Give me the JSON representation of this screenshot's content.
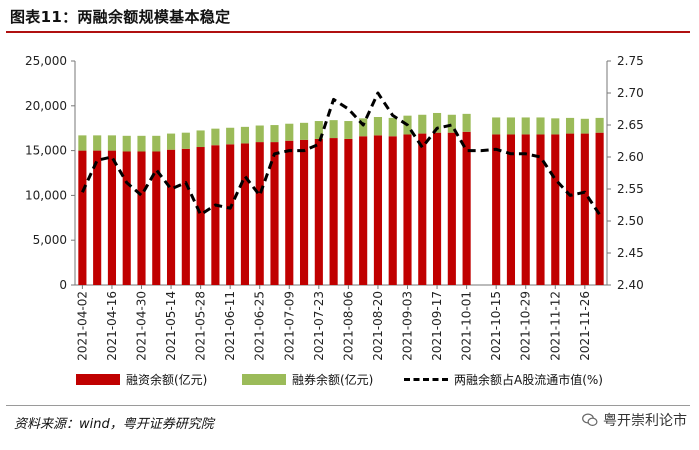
{
  "title": "图表11：两融余额规模基本稳定",
  "source": "资料来源：wind，粤开证券研究院",
  "watermark": "粤开崇利论市",
  "colors": {
    "financing": "#c00000",
    "securities": "#9bbb59",
    "ratio": "#000000",
    "title_rule": "#b01010"
  },
  "chart_data": {
    "type": "bar",
    "stacked": true,
    "categories": [
      "2021-04-02",
      "2021-04-09",
      "2021-04-16",
      "2021-04-23",
      "2021-04-30",
      "2021-05-07",
      "2021-05-14",
      "2021-05-21",
      "2021-05-28",
      "2021-06-04",
      "2021-06-11",
      "2021-06-18",
      "2021-06-25",
      "2021-07-02",
      "2021-07-09",
      "2021-07-16",
      "2021-07-23",
      "2021-07-30",
      "2021-08-06",
      "2021-08-13",
      "2021-08-20",
      "2021-08-27",
      "2021-09-03",
      "2021-09-10",
      "2021-09-17",
      "2021-09-24",
      "2021-10-01",
      "2021-10-08",
      "2021-10-15",
      "2021-10-22",
      "2021-10-29",
      "2021-11-05",
      "2021-11-12",
      "2021-11-19",
      "2021-11-26",
      "2021-12-03"
    ],
    "x_tick_labels": [
      "2021-04-02",
      "2021-04-16",
      "2021-04-30",
      "2021-05-14",
      "2021-05-28",
      "2021-06-11",
      "2021-06-25",
      "2021-07-09",
      "2021-07-23",
      "2021-08-06",
      "2021-08-20",
      "2021-09-03",
      "2021-09-17",
      "2021-10-01",
      "2021-10-15",
      "2021-10-29",
      "2021-11-12",
      "2021-11-26"
    ],
    "series": [
      {
        "name": "融资余额(亿元)",
        "type": "bar",
        "axis": "left",
        "values": [
          15000,
          15000,
          15000,
          14900,
          14900,
          14900,
          15100,
          15200,
          15400,
          15600,
          15700,
          15800,
          15950,
          15950,
          16100,
          16200,
          16300,
          16400,
          16300,
          16600,
          16700,
          16600,
          16800,
          16900,
          17000,
          17000,
          17100,
          null,
          16800,
          16800,
          16800,
          16800,
          16800,
          16900,
          16900,
          17000
        ]
      },
      {
        "name": "融券余额(亿元)",
        "type": "bar",
        "axis": "left",
        "values": [
          1700,
          1700,
          1700,
          1750,
          1750,
          1750,
          1800,
          1800,
          1850,
          1850,
          1850,
          1850,
          1850,
          1900,
          1900,
          1900,
          2000,
          2000,
          2000,
          2000,
          2050,
          2050,
          2100,
          2100,
          2200,
          2000,
          2000,
          null,
          1900,
          1900,
          1900,
          1900,
          1800,
          1750,
          1650,
          1650
        ]
      },
      {
        "name": "两融余额占A股流通市值(%)",
        "type": "line",
        "axis": "right",
        "values": [
          2.545,
          2.595,
          2.6,
          2.56,
          2.54,
          2.58,
          2.55,
          2.56,
          2.51,
          2.525,
          2.52,
          2.57,
          2.54,
          2.605,
          2.61,
          2.61,
          2.62,
          2.69,
          2.675,
          2.65,
          2.7,
          2.665,
          2.65,
          2.615,
          2.645,
          2.65,
          2.61,
          2.61,
          2.612,
          2.605,
          2.605,
          2.6,
          2.565,
          2.54,
          2.545,
          2.51
        ]
      }
    ],
    "y_left": {
      "min": 0,
      "max": 25000,
      "ticks": [
        "0",
        "5,000",
        "10,000",
        "15,000",
        "20,000",
        "25,000"
      ]
    },
    "y_right": {
      "min": 2.4,
      "max": 2.75,
      "ticks": [
        "2.40",
        "2.45",
        "2.50",
        "2.55",
        "2.60",
        "2.65",
        "2.70",
        "2.75"
      ]
    },
    "grid": false,
    "legend_position": "bottom"
  }
}
